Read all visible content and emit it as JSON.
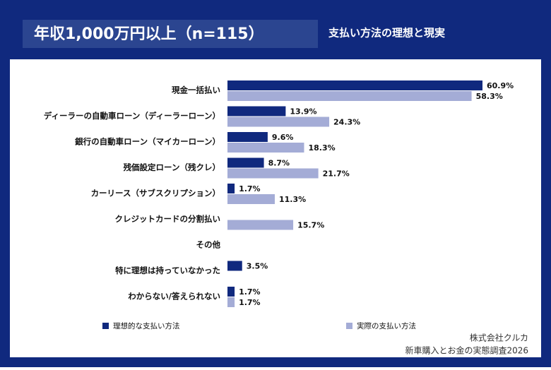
{
  "chart_data": {
    "type": "bar",
    "orientation": "horizontal",
    "title": "年収1,000万円以上（n=115）",
    "subtitle": "支払い方法の理想と現実",
    "categories": [
      "現金一括払い",
      "ディーラーの自動車ローン（ディーラーローン）",
      "銀行の自動車ローン（マイカーローン）",
      "残価設定ローン（残クレ）",
      "カーリース（サブスクリプション）",
      "クレジットカードの分割払い",
      "その他",
      "特に理想は持っていなかった",
      "わからない/答えられない"
    ],
    "series": [
      {
        "name": "理想的な支払い方法",
        "color": "#10297e",
        "values": [
          60.9,
          13.9,
          9.6,
          8.7,
          1.7,
          null,
          null,
          3.5,
          1.7
        ],
        "value_labels": [
          "60.9%",
          "13.9%",
          "9.6%",
          "8.7%",
          "1.7%",
          null,
          null,
          "3.5%",
          "1.7%"
        ]
      },
      {
        "name": "実際の支払い方法",
        "color": "#a4acd6",
        "values": [
          58.3,
          24.3,
          18.3,
          21.7,
          11.3,
          15.7,
          null,
          null,
          1.7
        ],
        "value_labels": [
          "58.3%",
          "24.3%",
          "18.3%",
          "21.7%",
          "11.3%",
          "15.7%",
          null,
          null,
          "1.7%"
        ]
      }
    ],
    "notes": [
      "株式会社クルカ",
      "新車購入とお金の実態調査2026"
    ]
  }
}
